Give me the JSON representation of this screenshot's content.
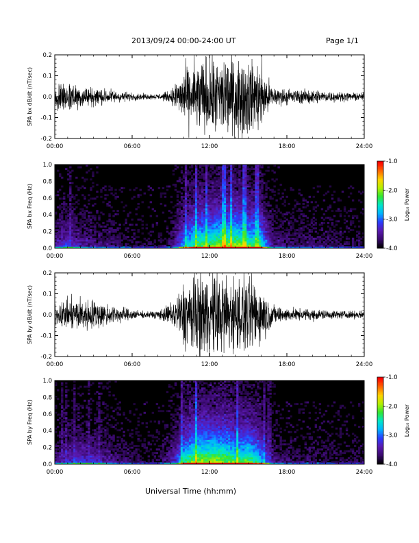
{
  "header": {
    "title": "2013/09/24  00:00-24:00 UT",
    "page": "Page 1/1"
  },
  "footer": {
    "xlabel": "Universal Time (hh:mm)"
  },
  "colorbar": {
    "label": "Log₁₀ Power",
    "ticks": [
      -1.0,
      -2.0,
      -3.0,
      -4.0
    ],
    "tick_labels": [
      "-1.0",
      "-2.0",
      "-3.0",
      "-4.0"
    ],
    "range": [
      -4.0,
      -1.0
    ],
    "colors": [
      "#000000",
      "#3a0a6e",
      "#5a1ab0",
      "#2a3cff",
      "#00b4ff",
      "#00e6c8",
      "#32e632",
      "#b4f000",
      "#ffd200",
      "#ff6400",
      "#ff0000"
    ]
  },
  "chart_data": [
    {
      "type": "line",
      "name": "SPA bx dB/dt",
      "ylabel": "SPA bx dB/dt (nT/sec)",
      "xlim": [
        0,
        24
      ],
      "ylim": [
        -0.2,
        0.2
      ],
      "x_ticks": [
        "00:00",
        "06:00",
        "12:00",
        "18:00",
        "24:00"
      ],
      "y_ticks": [
        "-0.2",
        "-0.1",
        "0.0",
        "0.1",
        "0.2"
      ],
      "envelope": {
        "hours": [
          0,
          1,
          2,
          3,
          4,
          5,
          6,
          7,
          8,
          9,
          9.5,
          10,
          11,
          12,
          13,
          14,
          15,
          16,
          16.5,
          17,
          18,
          19,
          20,
          21,
          22,
          23,
          24
        ],
        "amplitude": [
          0.06,
          0.09,
          0.06,
          0.05,
          0.04,
          0.03,
          0.02,
          0.015,
          0.015,
          0.03,
          0.09,
          0.14,
          0.2,
          0.2,
          0.22,
          0.22,
          0.2,
          0.18,
          0.1,
          0.05,
          0.04,
          0.035,
          0.04,
          0.03,
          0.025,
          0.02,
          0.02
        ]
      }
    },
    {
      "type": "heatmap",
      "name": "SPA bx Freq",
      "ylabel": "SPA bx Freq (Hz)",
      "xlim": [
        0,
        24
      ],
      "ylim": [
        0.0,
        1.0
      ],
      "x_ticks": [
        "00:00",
        "06:00",
        "12:00",
        "18:00",
        "24:00"
      ],
      "y_ticks": [
        "0.0",
        "0.2",
        "0.4",
        "0.6",
        "0.8",
        "1.0"
      ],
      "colorbar_label": "Log₁₀ Power",
      "colorbar_range": [
        -4.0,
        -1.0
      ]
    },
    {
      "type": "line",
      "name": "SPA by dB/dt",
      "ylabel": "SPA by dB/dt (nT/sec)",
      "xlim": [
        0,
        24
      ],
      "ylim": [
        -0.2,
        0.2
      ],
      "x_ticks": [
        "00:00",
        "06:00",
        "12:00",
        "18:00",
        "24:00"
      ],
      "y_ticks": [
        "-0.2",
        "-0.1",
        "0.0",
        "0.1",
        "0.2"
      ],
      "envelope": {
        "hours": [
          0,
          1,
          2,
          3,
          4,
          5,
          6,
          7,
          8,
          9,
          9.5,
          10,
          11,
          12,
          13,
          14,
          15,
          16,
          16.5,
          17,
          18,
          19,
          20,
          21,
          22,
          23,
          24
        ],
        "amplitude": [
          0.05,
          0.08,
          0.09,
          0.08,
          0.06,
          0.04,
          0.03,
          0.015,
          0.02,
          0.06,
          0.1,
          0.18,
          0.22,
          0.22,
          0.22,
          0.2,
          0.2,
          0.16,
          0.09,
          0.05,
          0.035,
          0.03,
          0.03,
          0.025,
          0.02,
          0.02,
          0.02
        ]
      }
    },
    {
      "type": "heatmap",
      "name": "SPA by Freq",
      "ylabel": "SPA by Freq (Hz)",
      "xlim": [
        0,
        24
      ],
      "ylim": [
        0.0,
        1.0
      ],
      "x_ticks": [
        "00:00",
        "06:00",
        "12:00",
        "18:00",
        "24:00"
      ],
      "y_ticks": [
        "0.0",
        "0.2",
        "0.4",
        "0.6",
        "0.8",
        "1.0"
      ],
      "colorbar_label": "Log₁₀ Power",
      "colorbar_range": [
        -4.0,
        -1.0
      ]
    }
  ]
}
